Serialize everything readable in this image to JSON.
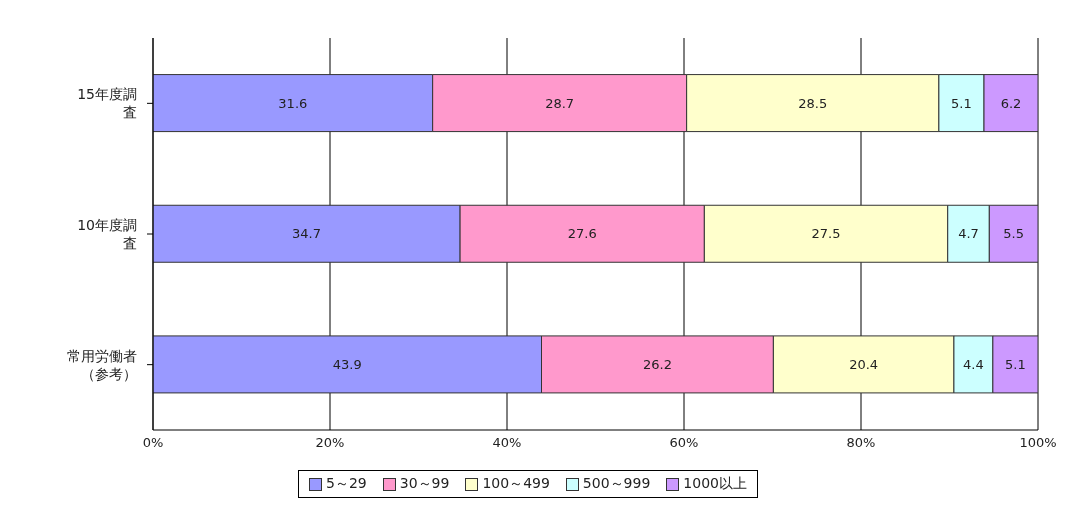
{
  "chart_data": {
    "type": "bar",
    "orientation": "horizontal",
    "stacked": true,
    "data_labels": true,
    "grid": "x",
    "legend": "bottom",
    "categories": [
      "15年度調査",
      "10年度調査",
      "常用労働者（参考）"
    ],
    "series": [
      {
        "name": "5～29",
        "color": "#9999ff",
        "values": [
          31.6,
          34.7,
          43.9
        ]
      },
      {
        "name": "30～99",
        "color": "#ff99cc",
        "values": [
          28.7,
          27.6,
          26.2
        ]
      },
      {
        "name": "100～499",
        "color": "#ffffcc",
        "values": [
          28.5,
          27.5,
          20.4
        ]
      },
      {
        "name": "500～999",
        "color": "#ccffff",
        "values": [
          5.1,
          4.7,
          4.4
        ]
      },
      {
        "name": "1000以上",
        "color": "#cc99ff",
        "values": [
          6.2,
          5.5,
          5.1
        ]
      }
    ],
    "xlim": [
      0,
      100
    ],
    "xticks": [
      {
        "value": 0,
        "label": "0%"
      },
      {
        "value": 20,
        "label": "20%"
      },
      {
        "value": 40,
        "label": "40%"
      },
      {
        "value": 60,
        "label": "60%"
      },
      {
        "value": 80,
        "label": "80%"
      },
      {
        "value": 100,
        "label": "100%"
      }
    ]
  }
}
